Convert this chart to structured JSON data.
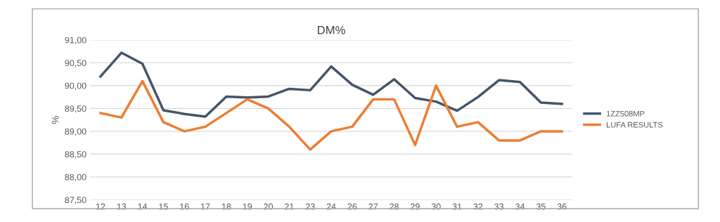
{
  "chart_data": {
    "type": "line",
    "title": "DM%",
    "ylabel": "%",
    "categories": [
      "12",
      "13",
      "14",
      "15",
      "16",
      "17",
      "18",
      "19",
      "20",
      "21",
      "23",
      "24",
      "26",
      "27",
      "28",
      "29",
      "30",
      "31",
      "32",
      "33",
      "34",
      "35",
      "36"
    ],
    "series": [
      {
        "name": "1ZZ508MP",
        "color": "#44546a",
        "values": [
          90.2,
          90.72,
          90.48,
          89.46,
          89.38,
          89.32,
          89.76,
          89.74,
          89.76,
          89.93,
          89.9,
          90.42,
          90.02,
          89.8,
          90.14,
          89.73,
          89.65,
          89.45,
          89.75,
          90.12,
          90.08,
          89.63,
          89.6
        ]
      },
      {
        "name": "LUFA RESULTS",
        "color": "#ed7d31",
        "values": [
          89.4,
          89.3,
          90.1,
          89.2,
          89.0,
          89.1,
          89.4,
          89.7,
          89.5,
          89.1,
          88.6,
          89.0,
          89.1,
          89.7,
          89.7,
          88.7,
          90.0,
          89.1,
          89.2,
          88.8,
          88.8,
          89.0,
          89.0
        ]
      }
    ],
    "ylim": [
      87.5,
      91.0
    ],
    "yticks": [
      {
        "value": 87.5,
        "label": "87,50"
      },
      {
        "value": 88.0,
        "label": "88,00"
      },
      {
        "value": 88.5,
        "label": "88,50"
      },
      {
        "value": 89.0,
        "label": "89,00"
      },
      {
        "value": 89.5,
        "label": "89,50"
      },
      {
        "value": 90.0,
        "label": "90,00"
      },
      {
        "value": 90.5,
        "label": "90,50"
      },
      {
        "value": 91.0,
        "label": "91,00"
      }
    ],
    "grid": "y",
    "legend": "right",
    "marker": "none",
    "line_style": "solid"
  }
}
